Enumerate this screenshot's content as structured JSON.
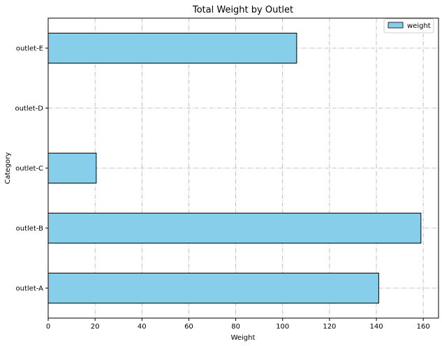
{
  "chart_data": {
    "type": "bar",
    "orientation": "horizontal",
    "title": "Total Weight by Outlet",
    "xlabel": "Weight",
    "ylabel": "Category",
    "categories": [
      "outlet-A",
      "outlet-B",
      "outlet-C",
      "outlet-D",
      "outlet-E"
    ],
    "series": [
      {
        "name": "weight",
        "values": [
          141,
          159,
          20.5,
          0,
          106
        ]
      }
    ],
    "xlim": [
      0,
      166.5
    ],
    "xticks": [
      0,
      20,
      40,
      60,
      80,
      100,
      120,
      140,
      160
    ],
    "grid": true,
    "grid_style": "dash-dot",
    "legend": {
      "position": "top-right"
    },
    "bar_color": "#87CEEB",
    "edge_color": "#000000"
  }
}
